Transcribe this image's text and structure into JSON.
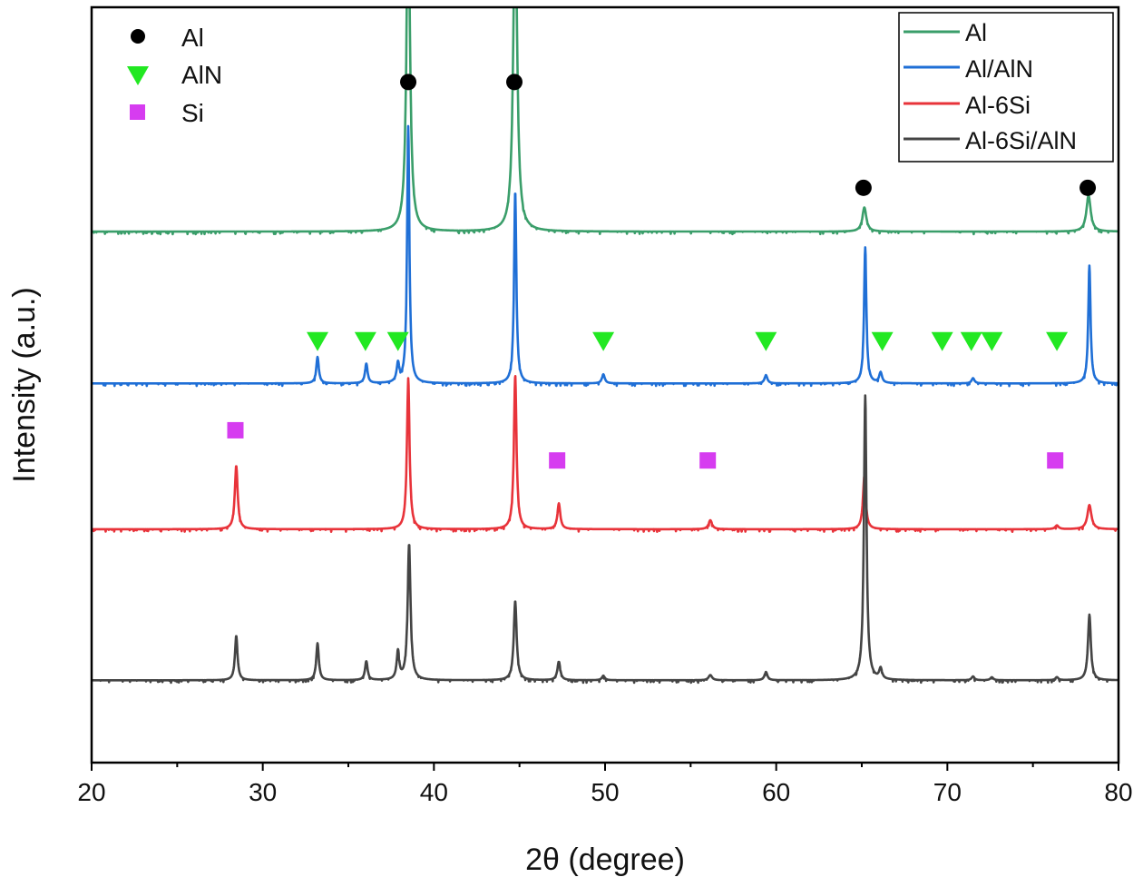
{
  "chart_data": {
    "type": "line",
    "title": "",
    "xlabel": "2θ (degree)",
    "ylabel": "Intensity (a.u.)",
    "xlim": [
      20,
      80
    ],
    "ylim": [
      0,
      100
    ],
    "xticks": [
      20,
      30,
      40,
      50,
      60,
      70,
      80
    ],
    "xtick_labels": [
      "20",
      "30",
      "40",
      "50",
      "60",
      "70",
      "80"
    ],
    "grid": false,
    "legend_position": "top-right",
    "series": [
      {
        "name": "Al",
        "color": "#3a9e6a",
        "baseline": 70.3,
        "peaks": [
          [
            38.5,
            45,
            0.12
          ],
          [
            44.75,
            45,
            0.13
          ],
          [
            65.15,
            3.2,
            0.14
          ],
          [
            78.25,
            4.8,
            0.15
          ]
        ]
      },
      {
        "name": "Al/AlN",
        "color": "#1f6fd6",
        "baseline": 50.2,
        "peaks": [
          [
            33.2,
            3.5,
            0.09
          ],
          [
            36.05,
            2.6,
            0.09
          ],
          [
            37.9,
            2.4,
            0.09
          ],
          [
            38.5,
            34,
            0.08
          ],
          [
            44.75,
            25.5,
            0.08
          ],
          [
            49.9,
            1.2,
            0.1
          ],
          [
            59.4,
            1.1,
            0.1
          ],
          [
            65.2,
            18,
            0.08
          ],
          [
            66.1,
            1.4,
            0.1
          ],
          [
            71.5,
            0.7,
            0.1
          ],
          [
            78.3,
            15.6,
            0.08
          ]
        ]
      },
      {
        "name": "Al-6Si",
        "color": "#e8333a",
        "baseline": 30.9,
        "peaks": [
          [
            28.45,
            8.4,
            0.1
          ],
          [
            38.5,
            20,
            0.09
          ],
          [
            44.75,
            20.5,
            0.09
          ],
          [
            47.3,
            3.4,
            0.1
          ],
          [
            56.15,
            1.2,
            0.12
          ],
          [
            65.15,
            7,
            0.1
          ],
          [
            76.4,
            0.5,
            0.12
          ],
          [
            78.3,
            3.2,
            0.14
          ]
        ]
      },
      {
        "name": "Al-6Si/AlN",
        "color": "#444444",
        "baseline": 10.9,
        "peaks": [
          [
            28.45,
            5.9,
            0.09
          ],
          [
            33.2,
            4.9,
            0.09
          ],
          [
            36.05,
            2.5,
            0.09
          ],
          [
            37.9,
            3.7,
            0.09
          ],
          [
            38.55,
            18,
            0.1
          ],
          [
            44.75,
            10.5,
            0.1
          ],
          [
            47.3,
            2.5,
            0.1
          ],
          [
            49.9,
            0.6,
            0.1
          ],
          [
            56.15,
            0.7,
            0.12
          ],
          [
            59.4,
            1.1,
            0.1
          ],
          [
            65.2,
            37.7,
            0.09
          ],
          [
            66.1,
            1.4,
            0.1
          ],
          [
            71.5,
            0.5,
            0.1
          ],
          [
            72.6,
            0.4,
            0.1
          ],
          [
            76.4,
            0.4,
            0.1
          ],
          [
            78.3,
            8.7,
            0.1
          ]
        ]
      }
    ],
    "phase_markers": [
      {
        "name": "Al",
        "symbol": "circle",
        "color": "#000000",
        "points": [
          [
            38.5,
            90.1
          ],
          [
            44.7,
            90.1
          ],
          [
            65.1,
            76.1
          ],
          [
            78.2,
            76.1
          ]
        ]
      },
      {
        "name": "AlN",
        "symbol": "triangle-down",
        "color": "#22e822",
        "points": [
          [
            33.2,
            55.8
          ],
          [
            36.0,
            55.8
          ],
          [
            37.9,
            55.8
          ],
          [
            49.9,
            55.8
          ],
          [
            59.4,
            55.8
          ],
          [
            66.2,
            55.8
          ],
          [
            69.7,
            55.8
          ],
          [
            71.4,
            55.8
          ],
          [
            72.6,
            55.8
          ],
          [
            76.4,
            55.8
          ]
        ]
      },
      {
        "name": "Si",
        "symbol": "square",
        "color": "#d63cf0",
        "points": [
          [
            28.4,
            44.0
          ],
          [
            47.2,
            40.0
          ],
          [
            56.0,
            40.0
          ],
          [
            76.3,
            40.0
          ]
        ]
      }
    ]
  }
}
